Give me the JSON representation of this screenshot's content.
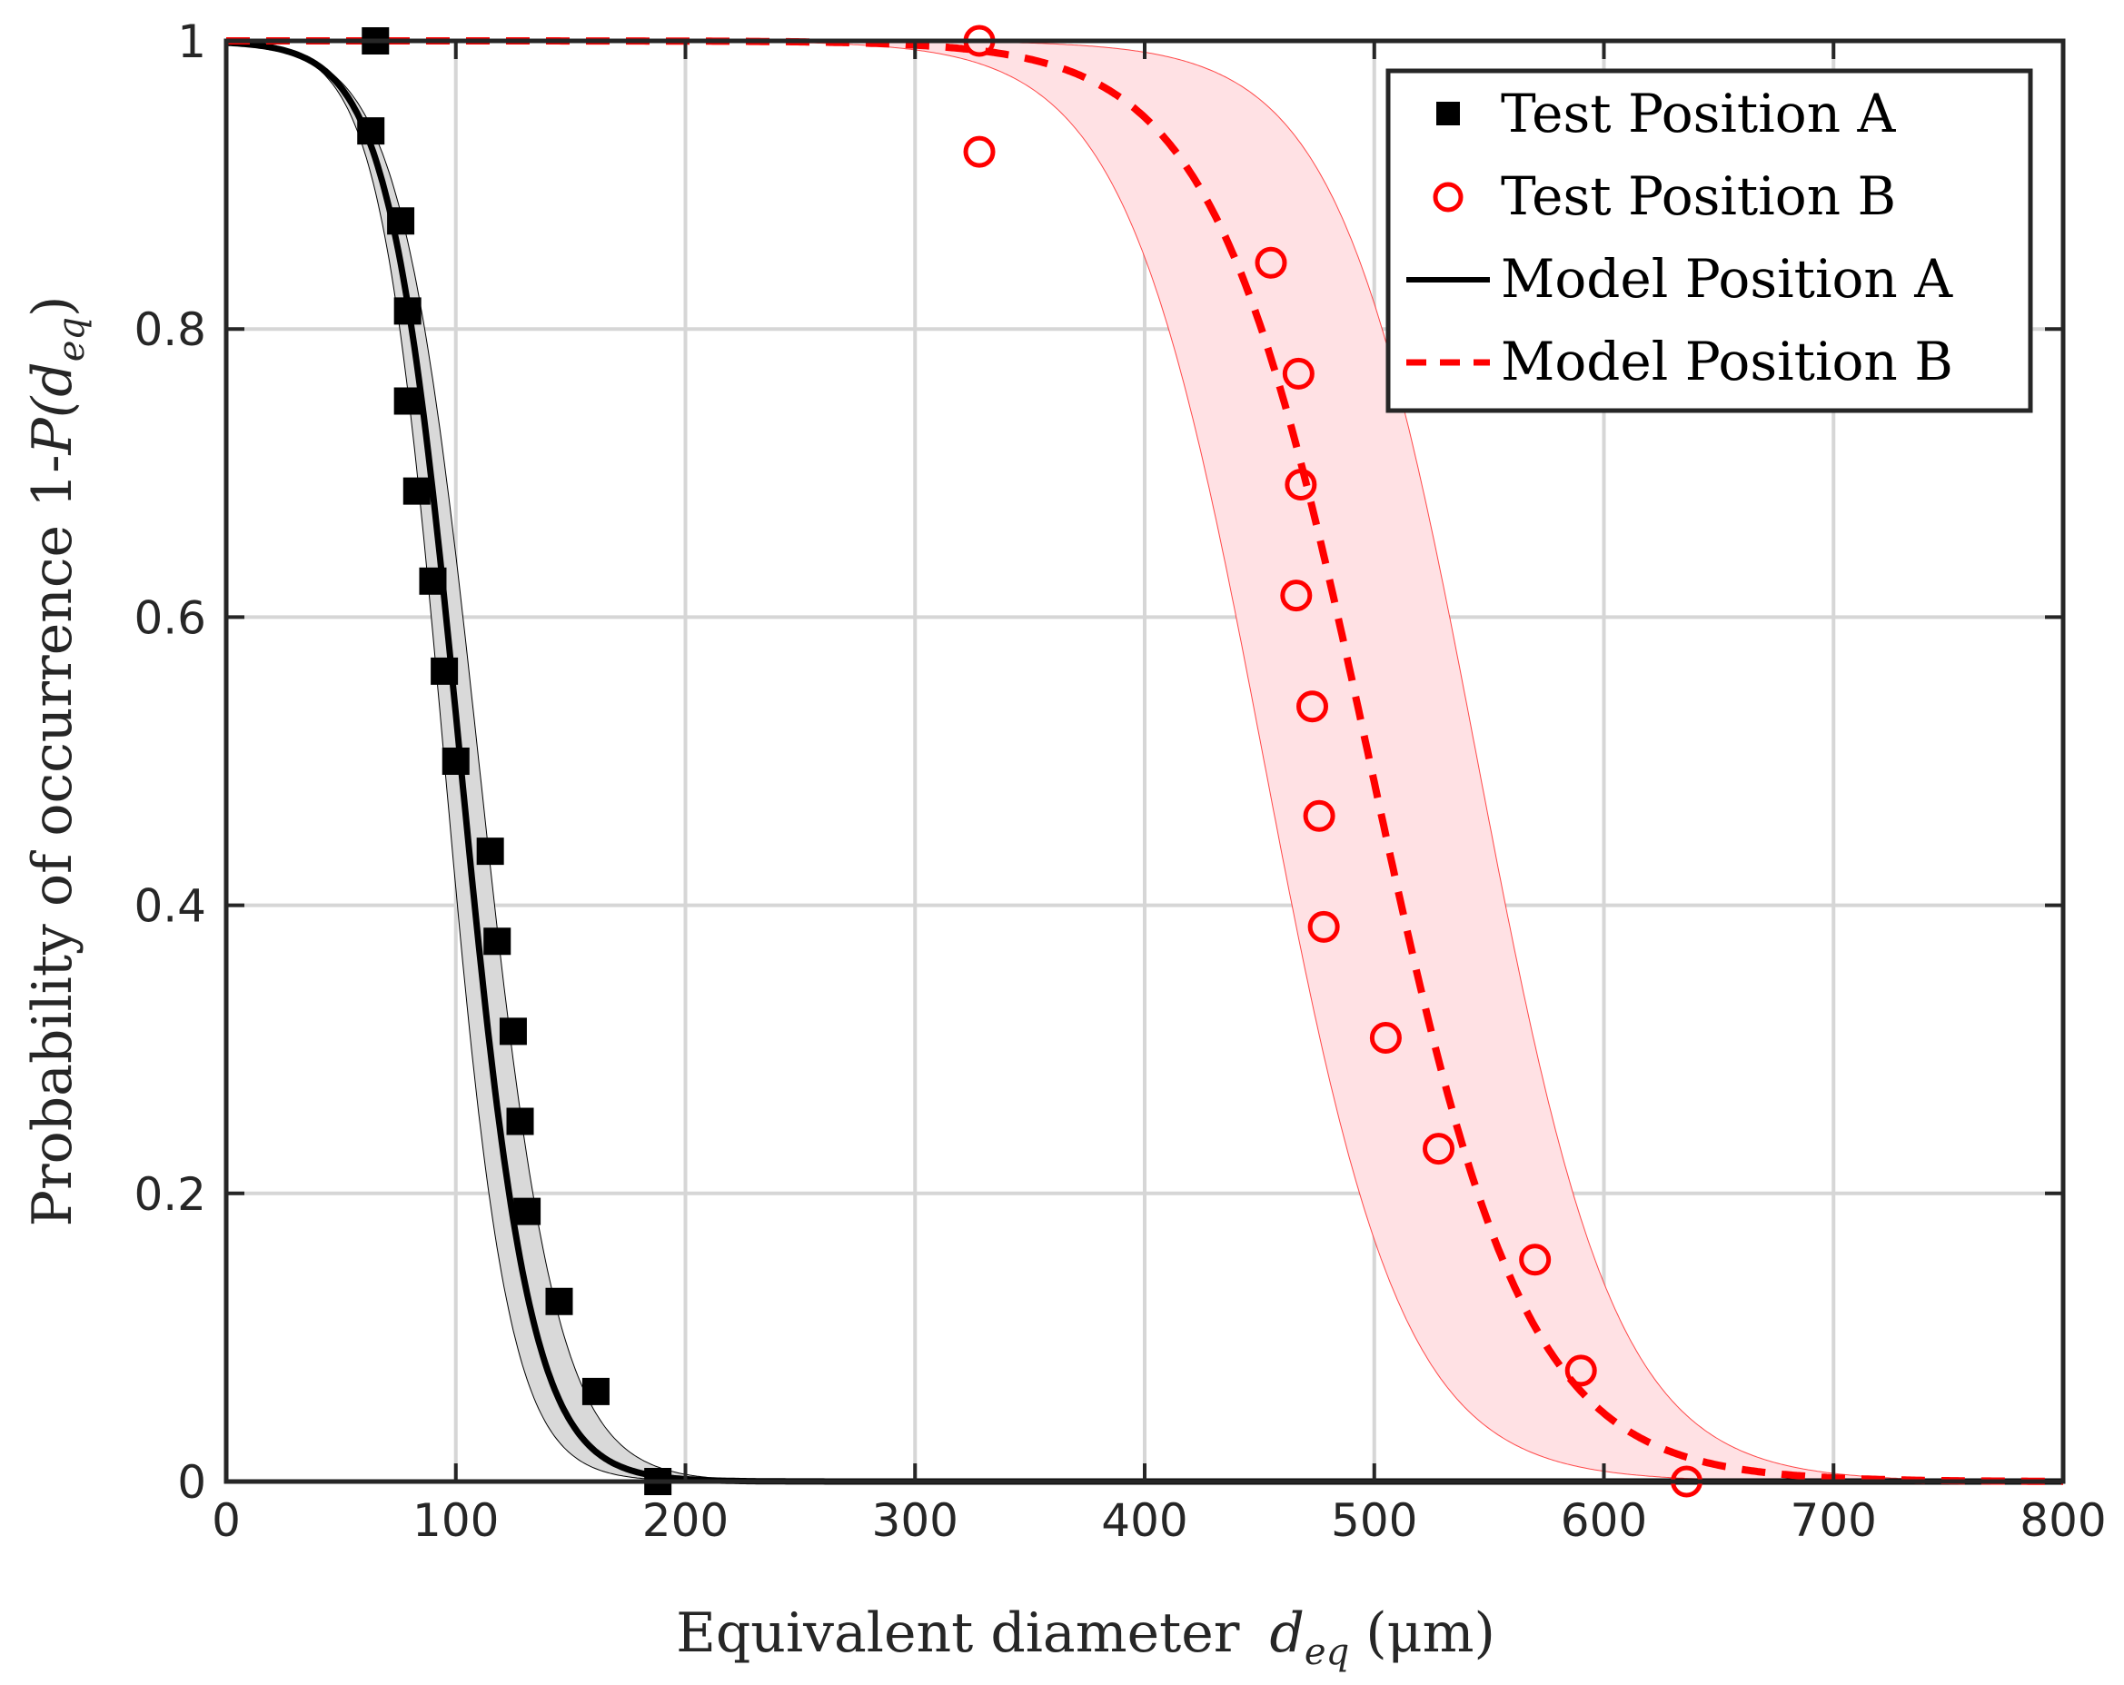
{
  "chart_data": {
    "type": "line",
    "xlabel": "Equivalent diameter",
    "xlabel_symbol": "d",
    "xlabel_subscript": "eq",
    "xlabel_unit": "(μm)",
    "ylabel": "Probability of occurrence 1-",
    "ylabel_symbol": "P(d",
    "ylabel_subscript": "eq",
    "ylabel_close": ")",
    "xlim": [
      0,
      800
    ],
    "ylim": [
      0,
      1
    ],
    "xticks": [
      0,
      100,
      200,
      300,
      400,
      500,
      600,
      700,
      800
    ],
    "xtick_labels": [
      "0",
      "100",
      "200",
      "300",
      "400",
      "500",
      "600",
      "700",
      "800"
    ],
    "yticks": [
      0,
      0.2,
      0.4,
      0.6,
      0.8,
      1
    ],
    "ytick_labels": [
      "0",
      "0.2",
      "0.4",
      "0.6",
      "0.8",
      "1"
    ],
    "grid": true,
    "legend_position": "top-right",
    "series": [
      {
        "name": "Test Position A",
        "kind": "scatter",
        "marker": "filled-square",
        "color": "#000000",
        "points": [
          [
            65,
            1.0
          ],
          [
            63,
            0.9375
          ],
          [
            76,
            0.875
          ],
          [
            79,
            0.8125
          ],
          [
            79,
            0.75
          ],
          [
            83,
            0.6875
          ],
          [
            90,
            0.625
          ],
          [
            95,
            0.5625
          ],
          [
            100,
            0.5
          ],
          [
            115,
            0.4375
          ],
          [
            118,
            0.375
          ],
          [
            125,
            0.3125
          ],
          [
            128,
            0.25
          ],
          [
            131,
            0.1875
          ],
          [
            145,
            0.125
          ],
          [
            161,
            0.0625
          ],
          [
            188,
            0.0
          ]
        ]
      },
      {
        "name": "Test Position B",
        "kind": "scatter",
        "marker": "open-circle",
        "color": "#ff0000",
        "points": [
          [
            328,
            1.0
          ],
          [
            328,
            0.923
          ],
          [
            455,
            0.846
          ],
          [
            467,
            0.769
          ],
          [
            468,
            0.692
          ],
          [
            466,
            0.615
          ],
          [
            473,
            0.538
          ],
          [
            476,
            0.462
          ],
          [
            478,
            0.385
          ],
          [
            505,
            0.308
          ],
          [
            528,
            0.231
          ],
          [
            570,
            0.154
          ],
          [
            590,
            0.077
          ],
          [
            636,
            0.0
          ]
        ]
      },
      {
        "name": "Model Position A",
        "kind": "line",
        "line_style": "solid",
        "color": "#000000",
        "model": {
          "family": "logistic",
          "center": 102,
          "scale": 15.3
        },
        "band": {
          "lower_center": 95,
          "lower_scale": 14,
          "upper_center": 110,
          "upper_scale": 17,
          "fill": "#d9d9d9"
        }
      },
      {
        "name": "Model Position B",
        "kind": "line",
        "line_style": "dashed",
        "color": "#ff0000",
        "model": {
          "family": "logistic",
          "center": 498,
          "scale": 34
        },
        "band": {
          "lower_center": 452,
          "lower_scale": 30,
          "upper_center": 545,
          "upper_scale": 30,
          "fill": "#ffe1e4"
        }
      }
    ]
  }
}
